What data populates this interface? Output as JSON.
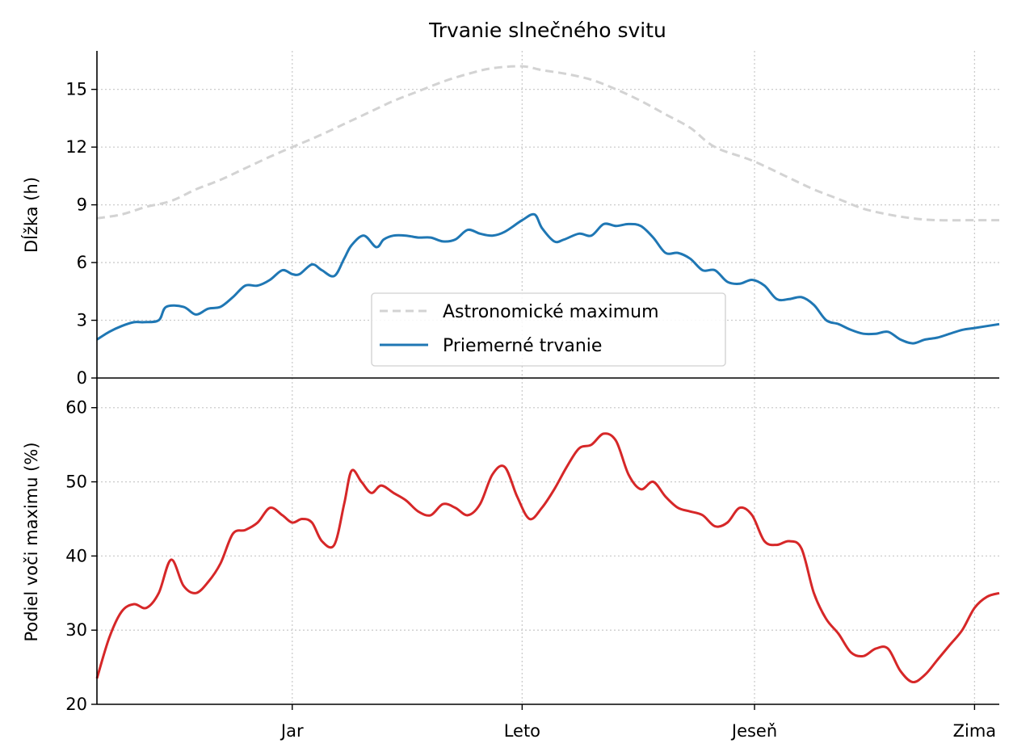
{
  "chart_data": [
    {
      "type": "line",
      "title": "Trvanie slnečného svitu",
      "ylabel": "Dĺžka (h)",
      "xlim": [
        0,
        365
      ],
      "ylim": [
        0,
        17
      ],
      "yticks": [
        0,
        3,
        6,
        9,
        12,
        15
      ],
      "grid": true,
      "legend_position": "bottom-center",
      "series": [
        {
          "name": "Astronomické maximum",
          "color": "#d3d3d3",
          "style": "dashed",
          "x": [
            0,
            10,
            20,
            30,
            40,
            50,
            60,
            70,
            79,
            90,
            100,
            110,
            120,
            130,
            140,
            150,
            160,
            172,
            180,
            190,
            200,
            210,
            220,
            230,
            240,
            250,
            265,
            280,
            290,
            300,
            310,
            320,
            330,
            340,
            355,
            365
          ],
          "y": [
            8.3,
            8.5,
            8.9,
            9.2,
            9.8,
            10.3,
            10.9,
            11.5,
            12.0,
            12.6,
            13.2,
            13.8,
            14.4,
            14.9,
            15.4,
            15.8,
            16.1,
            16.2,
            16.0,
            15.8,
            15.5,
            15.0,
            14.4,
            13.7,
            13.0,
            12.0,
            11.3,
            10.4,
            9.8,
            9.3,
            8.8,
            8.5,
            8.3,
            8.2,
            8.2,
            8.2
          ]
        },
        {
          "name": "Priemerné trvanie",
          "color": "#1f77b4",
          "style": "solid",
          "x": [
            0,
            5,
            10,
            15,
            19,
            25,
            28,
            35,
            40,
            45,
            50,
            55,
            60,
            65,
            70,
            75,
            79,
            82,
            87,
            91,
            96,
            100,
            103,
            108,
            113,
            116,
            120,
            125,
            130,
            135,
            140,
            145,
            150,
            155,
            160,
            165,
            172,
            177,
            180,
            185,
            189,
            195,
            200,
            205,
            210,
            215,
            220,
            225,
            230,
            235,
            240,
            245,
            250,
            255,
            260,
            265,
            270,
            275,
            280,
            285,
            290,
            295,
            300,
            305,
            310,
            315,
            320,
            325,
            330,
            335,
            340,
            345,
            350,
            355,
            360,
            365
          ],
          "y": [
            2.0,
            2.4,
            2.7,
            2.9,
            2.9,
            3.0,
            3.7,
            3.7,
            3.3,
            3.6,
            3.7,
            4.2,
            4.8,
            4.8,
            5.1,
            5.6,
            5.4,
            5.4,
            5.9,
            5.6,
            5.3,
            6.2,
            6.9,
            7.4,
            6.8,
            7.2,
            7.4,
            7.4,
            7.3,
            7.3,
            7.1,
            7.2,
            7.7,
            7.5,
            7.4,
            7.6,
            8.2,
            8.5,
            7.8,
            7.1,
            7.2,
            7.5,
            7.4,
            8.0,
            7.9,
            8.0,
            7.9,
            7.3,
            6.5,
            6.5,
            6.2,
            5.6,
            5.6,
            5.0,
            4.9,
            5.1,
            4.8,
            4.1,
            4.1,
            4.2,
            3.8,
            3.0,
            2.8,
            2.5,
            2.3,
            2.3,
            2.4,
            2.0,
            1.8,
            2.0,
            2.1,
            2.3,
            2.5,
            2.6,
            2.7,
            2.8
          ]
        }
      ]
    },
    {
      "type": "line",
      "ylabel": "Podiel voči maximu (%)",
      "xlim": [
        0,
        365
      ],
      "ylim": [
        20,
        64
      ],
      "yticks": [
        20,
        30,
        40,
        50,
        60
      ],
      "xticks": [
        {
          "value": 79,
          "label": "Jar"
        },
        {
          "value": 172,
          "label": "Leto"
        },
        {
          "value": 266,
          "label": "Jeseň"
        },
        {
          "value": 355,
          "label": "Zima"
        }
      ],
      "grid": true,
      "series": [
        {
          "color": "#d62728",
          "style": "solid",
          "x": [
            0,
            5,
            10,
            15,
            20,
            25,
            30,
            35,
            40,
            45,
            50,
            55,
            60,
            65,
            70,
            75,
            79,
            83,
            87,
            91,
            96,
            100,
            103,
            107,
            111,
            115,
            120,
            125,
            130,
            135,
            140,
            145,
            150,
            155,
            160,
            165,
            170,
            175,
            180,
            185,
            190,
            195,
            200,
            205,
            210,
            215,
            220,
            225,
            230,
            235,
            240,
            245,
            250,
            255,
            260,
            265,
            270,
            275,
            280,
            285,
            290,
            295,
            300,
            305,
            310,
            315,
            320,
            325,
            330,
            335,
            340,
            345,
            350,
            355,
            360,
            365
          ],
          "y": [
            23.5,
            29,
            32.5,
            33.5,
            33,
            35,
            39.5,
            36,
            35,
            36.5,
            39,
            43,
            43.5,
            44.5,
            46.5,
            45.5,
            44.5,
            45,
            44.5,
            42,
            41.5,
            47,
            51.5,
            50,
            48.5,
            49.5,
            48.5,
            47.5,
            46,
            45.5,
            47,
            46.5,
            45.5,
            47,
            51,
            52,
            48,
            45,
            46.5,
            49,
            52,
            54.5,
            55,
            56.5,
            55.5,
            51,
            49,
            50,
            48,
            46.5,
            46,
            45.5,
            44,
            44.5,
            46.5,
            45.5,
            42,
            41.5,
            42,
            41,
            35,
            31.5,
            29.5,
            27,
            26.5,
            27.5,
            27.5,
            24.5,
            23,
            24,
            26,
            28,
            30,
            33,
            34.5,
            35
          ]
        }
      ]
    }
  ]
}
